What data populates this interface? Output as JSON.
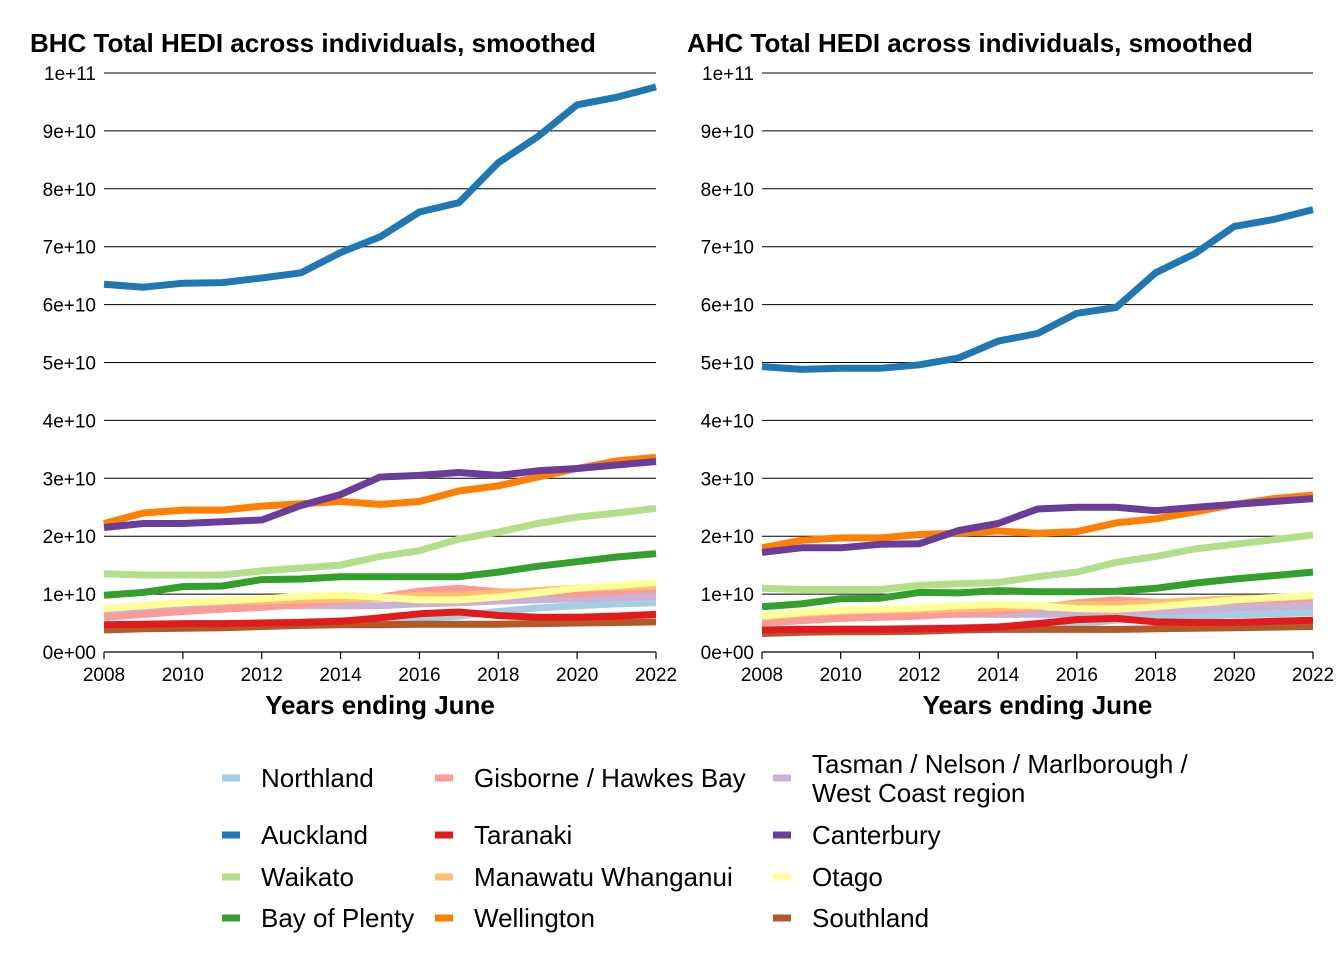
{
  "chart_data": [
    {
      "type": "line",
      "title": "BHC Total HEDI across individuals, smoothed",
      "xlabel": "Years ending June",
      "ylabel": "",
      "ylim": [
        0,
        100000000000
      ],
      "yticks": [
        "0e+00",
        "1e+10",
        "2e+10",
        "3e+10",
        "4e+10",
        "5e+10",
        "6e+10",
        "7e+10",
        "8e+10",
        "9e+10",
        "1e+11"
      ],
      "xticks": [
        "2008",
        "2010",
        "2012",
        "2014",
        "2016",
        "2018",
        "2020",
        "2022"
      ],
      "grid": "horizontal",
      "x": [
        2008,
        2009,
        2010,
        2011,
        2012,
        2013,
        2014,
        2015,
        2016,
        2017,
        2018,
        2019,
        2020,
        2021,
        2022
      ],
      "series": [
        {
          "name": "Northland",
          "color": "#a6cee3",
          "values": [
            4500000000.0,
            4600000000.0,
            4700000000.0,
            4800000000.0,
            5000000000.0,
            5200000000.0,
            5400000000.0,
            5600000000.0,
            5800000000.0,
            6200000000.0,
            7000000000.0,
            7600000000.0,
            8000000000.0,
            8300000000.0,
            8500000000.0
          ]
        },
        {
          "name": "Gisborne / Hawkes Bay",
          "color": "#fb9a99",
          "values": [
            6000000000.0,
            6500000000.0,
            7000000000.0,
            7400000000.0,
            7700000000.0,
            8200000000.0,
            8800000000.0,
            9500000000.0,
            10500000000.0,
            11000000000.0,
            10400000000.0,
            10200000000.0,
            10000000000.0,
            10500000000.0,
            10800000000.0
          ]
        },
        {
          "name": "Tasman / Nelson / Marlborough / West Coast region",
          "color": "#cab2d6",
          "values": [
            6500000000.0,
            7000000000.0,
            7500000000.0,
            7800000000.0,
            8000000000.0,
            8000000000.0,
            8000000000.0,
            8000000000.0,
            8300000000.0,
            8500000000.0,
            8800000000.0,
            9000000000.0,
            9200000000.0,
            9400000000.0,
            9600000000.0
          ]
        },
        {
          "name": "Auckland",
          "color": "#1f78b4",
          "values": [
            63500000000.0,
            63000000000.0,
            63700000000.0,
            63800000000.0,
            64600000000.0,
            65500000000.0,
            69000000000.0,
            71700000000.0,
            76000000000.0,
            77600000000.0,
            84500000000.0,
            89000000000.0,
            94500000000.0,
            95800000000.0,
            97600000000.0
          ]
        },
        {
          "name": "Taranaki",
          "color": "#e31a1c",
          "values": [
            4700000000.0,
            4800000000.0,
            4900000000.0,
            4900000000.0,
            5000000000.0,
            5100000000.0,
            5300000000.0,
            5900000000.0,
            6600000000.0,
            6900000000.0,
            6300000000.0,
            6000000000.0,
            6000000000.0,
            6200000000.0,
            6500000000.0
          ]
        },
        {
          "name": "Canterbury",
          "color": "#6a3d9a",
          "values": [
            21500000000.0,
            22200000000.0,
            22200000000.0,
            22500000000.0,
            22800000000.0,
            25300000000.0,
            27200000000.0,
            30200000000.0,
            30500000000.0,
            31000000000.0,
            30500000000.0,
            31300000000.0,
            31700000000.0,
            32300000000.0,
            32900000000.0
          ]
        },
        {
          "name": "Waikato",
          "color": "#b2df8a",
          "values": [
            13500000000.0,
            13300000000.0,
            13300000000.0,
            13300000000.0,
            14000000000.0,
            14500000000.0,
            15000000000.0,
            16500000000.0,
            17500000000.0,
            19500000000.0,
            20700000000.0,
            22200000000.0,
            23300000000.0,
            24000000000.0,
            24800000000.0
          ]
        },
        {
          "name": "Manawatu Whanganui",
          "color": "#fdbf6f",
          "values": [
            7500000000.0,
            8000000000.0,
            8500000000.0,
            8700000000.0,
            8800000000.0,
            9000000000.0,
            9100000000.0,
            9300000000.0,
            9800000000.0,
            9800000000.0,
            10200000000.0,
            10600000000.0,
            11000000000.0,
            11200000000.0,
            11400000000.0
          ]
        },
        {
          "name": "Otago",
          "color": "#ffff99",
          "values": [
            7500000000.0,
            8000000000.0,
            8500000000.0,
            8800000000.0,
            9200000000.0,
            9600000000.0,
            9800000000.0,
            9500000000.0,
            9000000000.0,
            9000000000.0,
            9500000000.0,
            10200000000.0,
            11000000000.0,
            11500000000.0,
            12000000000.0
          ]
        },
        {
          "name": "Bay of Plenty",
          "color": "#33a02c",
          "values": [
            9800000000.0,
            10300000000.0,
            11300000000.0,
            11400000000.0,
            12500000000.0,
            12600000000.0,
            13000000000.0,
            13000000000.0,
            13000000000.0,
            13000000000.0,
            13800000000.0,
            14800000000.0,
            15600000000.0,
            16400000000.0,
            17000000000.0
          ]
        },
        {
          "name": "Wellington",
          "color": "#ff7f00",
          "values": [
            22200000000.0,
            24000000000.0,
            24500000000.0,
            24500000000.0,
            25200000000.0,
            25600000000.0,
            26000000000.0,
            25500000000.0,
            26000000000.0,
            27800000000.0,
            28700000000.0,
            30200000000.0,
            31700000000.0,
            33000000000.0,
            33600000000.0
          ]
        },
        {
          "name": "Southland",
          "color": "#b15928",
          "values": [
            3800000000.0,
            4000000000.0,
            4100000000.0,
            4200000000.0,
            4400000000.0,
            4600000000.0,
            4700000000.0,
            4700000000.0,
            4800000000.0,
            4800000000.0,
            4800000000.0,
            4900000000.0,
            5000000000.0,
            5100000000.0,
            5200000000.0
          ]
        }
      ]
    },
    {
      "type": "line",
      "title": "AHC Total HEDI across individuals, smoothed",
      "xlabel": "Years ending June",
      "ylabel": "",
      "ylim": [
        0,
        100000000000
      ],
      "yticks": [
        "0e+00",
        "1e+10",
        "2e+10",
        "3e+10",
        "4e+10",
        "5e+10",
        "6e+10",
        "7e+10",
        "8e+10",
        "9e+10",
        "1e+11"
      ],
      "xticks": [
        "2008",
        "2010",
        "2012",
        "2014",
        "2016",
        "2018",
        "2020",
        "2022"
      ],
      "grid": "horizontal",
      "x": [
        2008,
        2009,
        2010,
        2011,
        2012,
        2013,
        2014,
        2015,
        2016,
        2017,
        2018,
        2019,
        2020,
        2021,
        2022
      ],
      "series": [
        {
          "name": "Northland",
          "color": "#a6cee3",
          "values": [
            3800000000.0,
            3900000000.0,
            4000000000.0,
            4000000000.0,
            4100000000.0,
            4200000000.0,
            4400000000.0,
            4600000000.0,
            4800000000.0,
            5500000000.0,
            6000000000.0,
            6200000000.0,
            6400000000.0,
            6600000000.0,
            6800000000.0
          ]
        },
        {
          "name": "Gisborne / Hawkes Bay",
          "color": "#fb9a99",
          "values": [
            5000000000.0,
            5400000000.0,
            5800000000.0,
            6000000000.0,
            6200000000.0,
            6600000000.0,
            7000000000.0,
            7600000000.0,
            8500000000.0,
            9000000000.0,
            8600000000.0,
            8600000000.0,
            8800000000.0,
            9000000000.0,
            9200000000.0
          ]
        },
        {
          "name": "Tasman / Nelson / Marlborough / West Coast region",
          "color": "#cab2d6",
          "values": [
            5200000000.0,
            5600000000.0,
            6000000000.0,
            6200000000.0,
            6400000000.0,
            6500000000.0,
            6500000000.0,
            6500000000.0,
            6600000000.0,
            6800000000.0,
            7000000000.0,
            7200000000.0,
            7600000000.0,
            7800000000.0,
            8000000000.0
          ]
        },
        {
          "name": "Auckland",
          "color": "#1f78b4",
          "values": [
            49300000000.0,
            48800000000.0,
            49000000000.0,
            49000000000.0,
            49600000000.0,
            50800000000.0,
            53700000000.0,
            55000000000.0,
            58500000000.0,
            59500000000.0,
            65500000000.0,
            68800000000.0,
            73500000000.0,
            74700000000.0,
            76400000000.0
          ]
        },
        {
          "name": "Taranaki",
          "color": "#e31a1c",
          "values": [
            3800000000.0,
            3900000000.0,
            3900000000.0,
            3900000000.0,
            4000000000.0,
            4100000000.0,
            4300000000.0,
            4900000000.0,
            5600000000.0,
            5800000000.0,
            5200000000.0,
            5100000000.0,
            5100000000.0,
            5300000000.0,
            5500000000.0
          ]
        },
        {
          "name": "Canterbury",
          "color": "#6a3d9a",
          "values": [
            17200000000.0,
            18000000000.0,
            18000000000.0,
            18600000000.0,
            18700000000.0,
            21000000000.0,
            22200000000.0,
            24700000000.0,
            25000000000.0,
            25000000000.0,
            24400000000.0,
            25000000000.0,
            25500000000.0,
            26000000000.0,
            26500000000.0
          ]
        },
        {
          "name": "Waikato",
          "color": "#b2df8a",
          "values": [
            11000000000.0,
            10800000000.0,
            10800000000.0,
            10800000000.0,
            11500000000.0,
            11800000000.0,
            12000000000.0,
            13000000000.0,
            13800000000.0,
            15500000000.0,
            16500000000.0,
            17800000000.0,
            18600000000.0,
            19400000000.0,
            20200000000.0
          ]
        },
        {
          "name": "Manawatu Whanganui",
          "color": "#fdbf6f",
          "values": [
            6000000000.0,
            6600000000.0,
            7000000000.0,
            7200000000.0,
            7300000000.0,
            7500000000.0,
            7600000000.0,
            7800000000.0,
            8200000000.0,
            8200000000.0,
            8500000000.0,
            8900000000.0,
            9200000000.0,
            9400000000.0,
            9600000000.0
          ]
        },
        {
          "name": "Otago",
          "color": "#ffff99",
          "values": [
            6200000000.0,
            6800000000.0,
            7200000000.0,
            7400000000.0,
            7600000000.0,
            8000000000.0,
            8200000000.0,
            8000000000.0,
            7500000000.0,
            7400000000.0,
            7800000000.0,
            8400000000.0,
            9000000000.0,
            9400000000.0,
            9800000000.0
          ]
        },
        {
          "name": "Bay of Plenty",
          "color": "#33a02c",
          "values": [
            7800000000.0,
            8300000000.0,
            9200000000.0,
            9300000000.0,
            10300000000.0,
            10200000000.0,
            10600000000.0,
            10400000000.0,
            10400000000.0,
            10500000000.0,
            11000000000.0,
            11900000000.0,
            12600000000.0,
            13200000000.0,
            13800000000.0
          ]
        },
        {
          "name": "Wellington",
          "color": "#ff7f00",
          "values": [
            18000000000.0,
            19300000000.0,
            19700000000.0,
            19700000000.0,
            20300000000.0,
            20500000000.0,
            20900000000.0,
            20500000000.0,
            20800000000.0,
            22300000000.0,
            23000000000.0,
            24200000000.0,
            25500000000.0,
            26500000000.0,
            27100000000.0
          ]
        },
        {
          "name": "Southland",
          "color": "#b15928",
          "values": [
            3200000000.0,
            3400000000.0,
            3500000000.0,
            3500000000.0,
            3600000000.0,
            3800000000.0,
            3900000000.0,
            3900000000.0,
            3900000000.0,
            3900000000.0,
            4000000000.0,
            4100000000.0,
            4200000000.0,
            4300000000.0,
            4400000000.0
          ]
        }
      ]
    }
  ],
  "legend": {
    "columns": [
      [
        "Northland",
        "Auckland",
        "Waikato",
        "Bay of Plenty"
      ],
      [
        "Gisborne / Hawkes Bay",
        "Taranaki",
        "Manawatu Whanganui",
        "Wellington"
      ],
      [
        "Tasman / Nelson / Marlborough /|West Coast region",
        "Canterbury",
        "Otago",
        "Southland"
      ]
    ]
  }
}
